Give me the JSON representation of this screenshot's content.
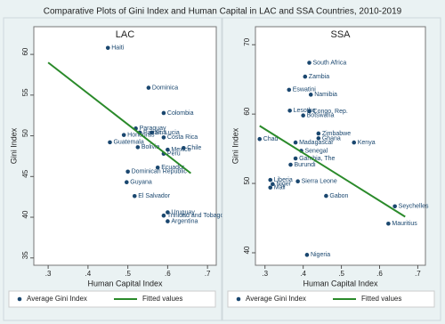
{
  "title": "Comparative Plots of Gini Index and Human Capital in LAC and SSA Countries, 2010-2019",
  "chart_data": [
    {
      "type": "scatter",
      "title": "LAC",
      "x_label": "Human Capital Index",
      "y_label": "Gini Index",
      "xlim": [
        0.264,
        0.722
      ],
      "ylim": [
        34.1,
        63.4
      ],
      "xticks": [
        {
          "value": 0.3,
          "label": ".3"
        },
        {
          "value": 0.4,
          "label": ".4"
        },
        {
          "value": 0.5,
          "label": ".5"
        },
        {
          "value": 0.6,
          "label": ".6"
        },
        {
          "value": 0.7,
          "label": ".7"
        }
      ],
      "yticks": [
        35,
        40,
        45,
        50,
        55,
        60
      ],
      "legend": "bottom",
      "series": [
        {
          "name": "Average Gini Index",
          "type": "scatter",
          "color": "#1a476f",
          "labels": [
            "Haiti",
            "Dominica",
            "Colombia",
            "Paraguay",
            "Panama",
            "St. Lucia",
            "Honduras",
            "Costa Rica",
            "Guatemala",
            "Bolivia",
            "Mexico",
            "Peru",
            "Chile",
            "Ecuador",
            "Dominican Republic",
            "Guyana",
            "El Salvador",
            "Uruguay",
            "Trinidad and Tobago",
            "Argentina"
          ],
          "x": [
            0.45,
            0.552,
            0.59,
            0.52,
            0.53,
            0.56,
            0.49,
            0.59,
            0.455,
            0.525,
            0.6,
            0.59,
            0.64,
            0.575,
            0.5,
            0.497,
            0.517,
            0.6,
            0.59,
            0.6
          ],
          "values": [
            60.8,
            55.9,
            52.8,
            50.9,
            50.4,
            50.4,
            50.1,
            49.8,
            49.2,
            48.6,
            48.3,
            47.8,
            48.5,
            46.1,
            45.6,
            44.3,
            42.6,
            40.6,
            40.2,
            39.5
          ]
        },
        {
          "name": "Fitted values",
          "type": "line",
          "color": "#2a8a2a",
          "x": [
            0.3,
            0.658
          ],
          "values": [
            59.0,
            45.4
          ]
        }
      ]
    },
    {
      "type": "scatter",
      "title": "SSA",
      "x_label": "Human Capital Index",
      "y_label": "Gini Index",
      "xlim": [
        0.275,
        0.72
      ],
      "ylim": [
        38.2,
        72.6
      ],
      "xticks": [
        {
          "value": 0.3,
          "label": ".3"
        },
        {
          "value": 0.4,
          "label": ".4"
        },
        {
          "value": 0.5,
          "label": ".5"
        },
        {
          "value": 0.6,
          "label": ".6"
        },
        {
          "value": 0.7,
          "label": ".7"
        }
      ],
      "yticks": [
        40,
        50,
        60,
        70
      ],
      "legend": "bottom",
      "series": [
        {
          "name": "Average Gini Index",
          "type": "scatter",
          "color": "#1a476f",
          "labels": [
            "South Africa",
            "Zambia",
            "Eswatini",
            "Namibia",
            "Lesotho",
            "Congo, Rep.",
            "Botswana",
            "Chad",
            "Kenya",
            "Zimbabwe",
            "Ghana",
            "Madagascar",
            "Senegal",
            "Gambia, The",
            "Burundi",
            "Sierra Leone",
            "Liberia",
            "Niger",
            "Mali",
            "Gabon",
            "Seychelles",
            "Mauritius",
            "Nigeria"
          ],
          "x": [
            0.416,
            0.405,
            0.363,
            0.42,
            0.365,
            0.416,
            0.4,
            0.286,
            0.533,
            0.44,
            0.44,
            0.38,
            0.395,
            0.38,
            0.367,
            0.386,
            0.314,
            0.32,
            0.314,
            0.46,
            0.64,
            0.623,
            0.41
          ],
          "values": [
            67.4,
            65.4,
            63.5,
            62.8,
            60.5,
            60.4,
            59.8,
            56.4,
            55.9,
            57.2,
            56.5,
            55.9,
            54.7,
            53.6,
            52.7,
            50.3,
            50.5,
            49.9,
            49.4,
            48.2,
            46.7,
            44.2,
            39.7
          ]
        },
        {
          "name": "Fitted values",
          "type": "line",
          "color": "#2a8a2a",
          "x": [
            0.286,
            0.667
          ],
          "values": [
            58.3,
            45.2
          ]
        }
      ]
    }
  ]
}
